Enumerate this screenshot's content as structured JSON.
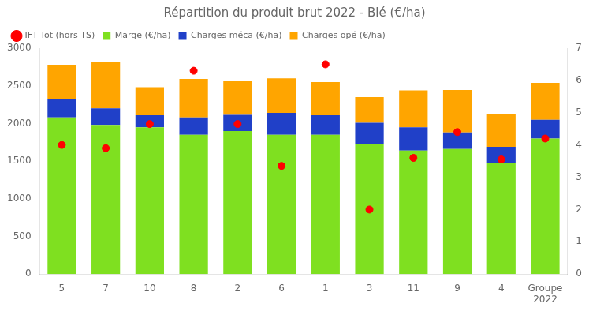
{
  "chart_data": {
    "type": "bar",
    "title": "Répartition du produit brut 2022 - Blé (€/ha)",
    "categories": [
      "5",
      "7",
      "10",
      "8",
      "2",
      "6",
      "1",
      "3",
      "11",
      "9",
      "4",
      "Groupe\n2022"
    ],
    "stacked": true,
    "grid": false,
    "legend": "upper left",
    "ylim": [
      0,
      3000
    ],
    "yticks": [
      0,
      500,
      1000,
      1500,
      2000,
      2500,
      3000
    ],
    "y2lim": [
      0,
      7
    ],
    "y2ticks": [
      0,
      1,
      2,
      3,
      4,
      5,
      6,
      7
    ],
    "series": [
      {
        "name": "Marge (€/ha)",
        "color": "#7FE020",
        "values": [
          2080,
          1980,
          1950,
          1850,
          1900,
          1850,
          1850,
          1720,
          1640,
          1660,
          1470,
          1800
        ]
      },
      {
        "name": "Charges méca (€/ha)",
        "color": "#2040C8",
        "values": [
          250,
          220,
          160,
          230,
          215,
          290,
          260,
          290,
          310,
          220,
          220,
          250
        ]
      },
      {
        "name": "Charges opé (€/ha)",
        "color": "#FFA500",
        "values": [
          450,
          620,
          370,
          510,
          455,
          460,
          440,
          340,
          490,
          565,
          440,
          490
        ]
      },
      {
        "name": "IFT Tot (hors TS)",
        "type": "scatter",
        "axis": "y2",
        "color": "#FF0000",
        "marker": "circle",
        "values": [
          4.0,
          3.9,
          4.65,
          6.3,
          4.65,
          3.35,
          6.5,
          2.0,
          3.6,
          4.4,
          3.55,
          4.2
        ]
      }
    ]
  }
}
